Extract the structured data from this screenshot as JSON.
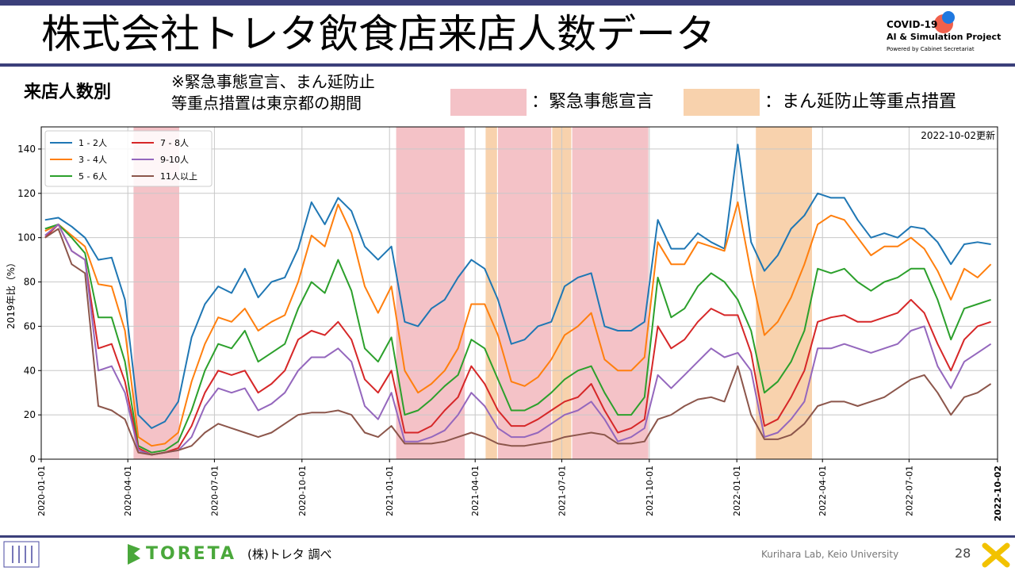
{
  "header": {
    "title": "株式会社トレタ飲食店来店人数データ",
    "logo_line1": "COVID-19",
    "logo_line2": "AI & Simulation Project",
    "logo_line3": "Powered by Cabinet Secretariat"
  },
  "subtitle": {
    "left": "来店人数別",
    "note_line1": "※緊急事態宣言、まん延防止",
    "note_line2": "等重点措置は東京都の期間",
    "legend_red_label": "：緊急事態宣言",
    "legend_orange_label": "：まん延防止等重点措置"
  },
  "footer": {
    "brand": "TORETA",
    "source": "(株)トレタ 調べ",
    "lab": "Kurihara Lab, Keio University",
    "page": "28"
  },
  "chart_data": {
    "type": "line",
    "updated": "2022-10-02更新",
    "ylabel": "2019年比（%）",
    "ylim": [
      0,
      150
    ],
    "yticks": [
      0,
      20,
      40,
      60,
      80,
      100,
      120,
      140
    ],
    "xlim": [
      "2020-01-01",
      "2022-10-02"
    ],
    "xticks": [
      "2020-01-01",
      "2020-04-01",
      "2020-07-01",
      "2020-10-01",
      "2021-01-01",
      "2021-04-01",
      "2021-07-01",
      "2021-10-01",
      "2022-01-01",
      "2022-04-01",
      "2022-07-01",
      "2022-10-02"
    ],
    "grid": true,
    "legend_position": "top-left",
    "periods": [
      {
        "type": "emergency",
        "start": "2020-04-07",
        "end": "2020-05-25"
      },
      {
        "type": "emergency",
        "start": "2021-01-08",
        "end": "2021-03-21"
      },
      {
        "type": "semi",
        "start": "2021-04-12",
        "end": "2021-04-24"
      },
      {
        "type": "emergency",
        "start": "2021-04-25",
        "end": "2021-06-20"
      },
      {
        "type": "semi",
        "start": "2021-06-21",
        "end": "2021-07-11"
      },
      {
        "type": "emergency",
        "start": "2021-07-12",
        "end": "2021-09-30"
      },
      {
        "type": "semi",
        "start": "2022-01-21",
        "end": "2022-03-21"
      }
    ],
    "colors": {
      "emergency": "#f4c2c7",
      "semi": "#f8d2ad"
    },
    "x": [
      "2020-01-05",
      "2020-01-19",
      "2020-02-02",
      "2020-02-16",
      "2020-03-01",
      "2020-03-15",
      "2020-03-29",
      "2020-04-12",
      "2020-04-26",
      "2020-05-10",
      "2020-05-24",
      "2020-06-07",
      "2020-06-21",
      "2020-07-05",
      "2020-07-19",
      "2020-08-02",
      "2020-08-16",
      "2020-08-30",
      "2020-09-13",
      "2020-09-27",
      "2020-10-11",
      "2020-10-25",
      "2020-11-08",
      "2020-11-22",
      "2020-12-06",
      "2020-12-20",
      "2021-01-03",
      "2021-01-17",
      "2021-01-31",
      "2021-02-14",
      "2021-02-28",
      "2021-03-14",
      "2021-03-28",
      "2021-04-11",
      "2021-04-25",
      "2021-05-09",
      "2021-05-23",
      "2021-06-06",
      "2021-06-20",
      "2021-07-04",
      "2021-07-18",
      "2021-08-01",
      "2021-08-15",
      "2021-08-29",
      "2021-09-12",
      "2021-09-26",
      "2021-10-10",
      "2021-10-24",
      "2021-11-07",
      "2021-11-21",
      "2021-12-05",
      "2021-12-19",
      "2022-01-02",
      "2022-01-16",
      "2022-01-30",
      "2022-02-13",
      "2022-02-27",
      "2022-03-13",
      "2022-03-27",
      "2022-04-10",
      "2022-04-24",
      "2022-05-08",
      "2022-05-22",
      "2022-06-05",
      "2022-06-19",
      "2022-07-03",
      "2022-07-17",
      "2022-07-31",
      "2022-08-14",
      "2022-08-28",
      "2022-09-11",
      "2022-09-25"
    ],
    "series": [
      {
        "name": "1 - 2人",
        "color": "#1f77b4",
        "values": [
          108,
          109,
          105,
          100,
          90,
          91,
          72,
          20,
          14,
          17,
          26,
          55,
          70,
          78,
          75,
          86,
          73,
          80,
          82,
          95,
          116,
          106,
          118,
          112,
          96,
          90,
          96,
          62,
          60,
          68,
          72,
          82,
          90,
          86,
          72,
          52,
          54,
          60,
          62,
          78,
          82,
          84,
          60,
          58,
          58,
          62,
          108,
          95,
          95,
          102,
          98,
          95,
          142,
          98,
          85,
          92,
          104,
          110,
          120,
          118,
          118,
          108,
          100,
          102,
          100,
          105,
          104,
          98,
          88,
          97,
          98,
          97
        ]
      },
      {
        "name": "3 - 4人",
        "color": "#ff7f0e",
        "values": [
          103,
          106,
          101,
          96,
          79,
          78,
          58,
          10,
          6,
          7,
          12,
          35,
          52,
          64,
          62,
          68,
          58,
          62,
          65,
          80,
          101,
          96,
          115,
          102,
          78,
          66,
          78,
          40,
          30,
          34,
          40,
          50,
          70,
          70,
          56,
          35,
          33,
          37,
          45,
          56,
          60,
          66,
          45,
          40,
          40,
          46,
          98,
          88,
          88,
          98,
          96,
          94,
          116,
          84,
          56,
          62,
          73,
          88,
          106,
          110,
          108,
          100,
          92,
          96,
          96,
          100,
          95,
          85,
          72,
          86,
          82,
          88
        ]
      },
      {
        "name": "5 - 6人",
        "color": "#2ca02c",
        "values": [
          104,
          106,
          100,
          93,
          64,
          64,
          44,
          6,
          3,
          4,
          8,
          22,
          40,
          52,
          50,
          58,
          44,
          48,
          52,
          68,
          80,
          75,
          90,
          76,
          50,
          44,
          55,
          20,
          22,
          27,
          33,
          38,
          54,
          50,
          36,
          22,
          22,
          25,
          30,
          36,
          40,
          42,
          30,
          20,
          20,
          28,
          82,
          64,
          68,
          78,
          84,
          80,
          72,
          58,
          30,
          35,
          44,
          58,
          86,
          84,
          86,
          80,
          76,
          80,
          82,
          86,
          86,
          72,
          54,
          68,
          70,
          72
        ]
      },
      {
        "name": "7 - 8人",
        "color": "#d62728",
        "values": [
          100,
          106,
          94,
          90,
          50,
          52,
          35,
          5,
          2,
          3,
          5,
          15,
          30,
          40,
          38,
          40,
          30,
          34,
          40,
          54,
          58,
          56,
          62,
          54,
          36,
          30,
          40,
          12,
          12,
          15,
          22,
          28,
          42,
          34,
          22,
          15,
          15,
          18,
          22,
          26,
          28,
          34,
          22,
          12,
          14,
          18,
          60,
          50,
          54,
          62,
          68,
          65,
          65,
          48,
          15,
          18,
          28,
          40,
          62,
          64,
          65,
          62,
          62,
          64,
          66,
          72,
          66,
          52,
          40,
          54,
          60,
          62
        ]
      },
      {
        "name": "9-10人",
        "color": "#9467bd",
        "values": [
          101,
          106,
          94,
          90,
          40,
          42,
          30,
          4,
          2,
          3,
          4,
          10,
          24,
          32,
          30,
          32,
          22,
          25,
          30,
          40,
          46,
          46,
          50,
          44,
          24,
          18,
          30,
          8,
          8,
          10,
          13,
          20,
          30,
          24,
          14,
          10,
          10,
          12,
          16,
          20,
          22,
          26,
          18,
          8,
          10,
          14,
          38,
          32,
          38,
          44,
          50,
          46,
          48,
          40,
          10,
          12,
          18,
          26,
          50,
          50,
          52,
          50,
          48,
          50,
          52,
          58,
          60,
          42,
          32,
          44,
          48,
          52
        ]
      },
      {
        "name": "11人以上",
        "color": "#8c564b",
        "values": [
          100,
          104,
          88,
          84,
          24,
          22,
          18,
          3,
          2,
          3,
          4,
          6,
          12,
          16,
          14,
          12,
          10,
          12,
          16,
          20,
          21,
          21,
          22,
          20,
          12,
          10,
          15,
          7,
          7,
          7,
          8,
          10,
          12,
          10,
          7,
          6,
          6,
          7,
          8,
          10,
          11,
          12,
          11,
          7,
          7,
          8,
          18,
          20,
          24,
          27,
          28,
          26,
          42,
          20,
          9,
          9,
          11,
          16,
          24,
          26,
          26,
          24,
          26,
          28,
          32,
          36,
          38,
          30,
          20,
          28,
          30,
          34
        ]
      }
    ]
  }
}
